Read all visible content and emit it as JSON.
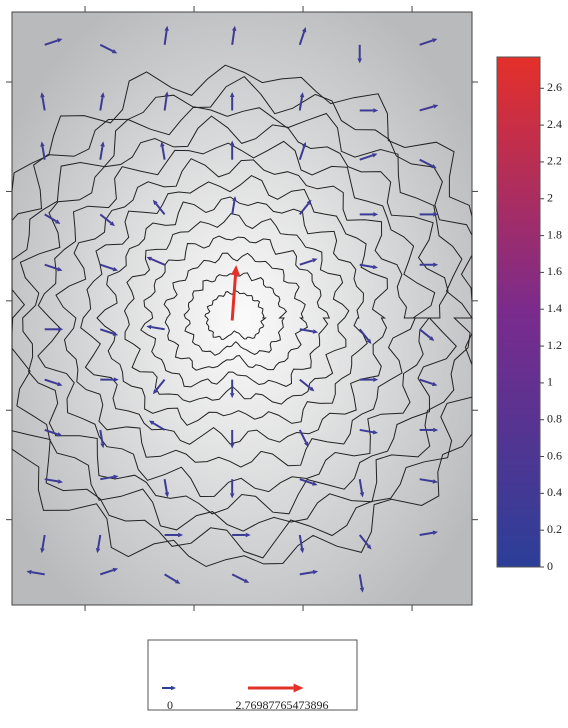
{
  "chart_data": {
    "type": "quiver",
    "xlim": [
      0.33,
      4.55
    ],
    "ylim": [
      0.22,
      5.64
    ],
    "xticks": [
      1,
      2,
      3,
      4
    ],
    "yticks": [
      1,
      2,
      3,
      4,
      5
    ],
    "x": [
      0.63,
      1.14,
      1.73,
      2.35,
      2.97,
      3.52,
      4.07,
      0.63,
      1.14,
      1.73,
      2.35,
      2.97,
      3.52,
      4.07,
      0.63,
      1.14,
      1.73,
      2.35,
      2.97,
      3.52,
      4.07,
      0.63,
      1.14,
      1.73,
      2.35,
      2.97,
      3.52,
      4.07,
      0.63,
      1.14,
      1.73,
      2.97,
      3.52,
      4.07,
      2.35,
      0.63,
      1.14,
      1.73,
      2.97,
      3.52,
      4.07,
      0.63,
      1.14,
      1.73,
      2.35,
      2.97,
      3.52,
      4.07,
      0.63,
      1.14,
      1.73,
      2.35,
      2.97,
      3.52,
      4.07,
      0.63,
      1.14,
      1.73,
      2.35,
      2.97,
      3.52,
      4.07,
      0.63,
      1.14,
      1.73,
      2.35,
      2.97,
      3.52,
      4.07,
      0.63,
      1.14,
      1.73,
      2.35,
      2.97,
      3.52
    ],
    "y": [
      5.34,
      5.34,
      5.34,
      5.34,
      5.34,
      5.34,
      5.34,
      4.74,
      4.74,
      4.74,
      4.74,
      4.74,
      4.74,
      4.74,
      4.29,
      4.29,
      4.29,
      4.29,
      4.29,
      4.29,
      4.29,
      3.79,
      3.79,
      3.79,
      3.79,
      3.79,
      3.79,
      3.79,
      3.33,
      3.33,
      3.33,
      3.33,
      3.33,
      3.33,
      2.82,
      2.74,
      2.74,
      2.74,
      2.74,
      2.74,
      2.74,
      2.28,
      2.28,
      2.28,
      2.28,
      2.28,
      2.28,
      2.28,
      1.82,
      1.82,
      1.82,
      1.82,
      1.82,
      1.82,
      1.82,
      1.37,
      1.37,
      1.37,
      1.37,
      1.37,
      1.37,
      1.37,
      0.86,
      0.86,
      0.86,
      0.86,
      0.86,
      0.86,
      0.86,
      0.5,
      0.5,
      0.5,
      0.5,
      0.5,
      0.5
    ],
    "u": [
      0.3,
      0.3,
      0.05,
      0.05,
      0.1,
      0,
      0.3,
      -0.05,
      0.05,
      0.05,
      0,
      0.05,
      0.3,
      0.35,
      -0.05,
      0.05,
      -0.05,
      0,
      0.1,
      0.3,
      0.3,
      0.25,
      0.25,
      -0.2,
      0.05,
      0.2,
      0.3,
      0.3,
      0.3,
      0.3,
      -0.35,
      0.3,
      0.3,
      0.3,
      0.2,
      0.3,
      0.3,
      -0.3,
      0.3,
      0.2,
      0.25,
      0.3,
      0.3,
      -0.2,
      0,
      0.25,
      0.3,
      0.3,
      0.3,
      0.05,
      -0.25,
      0,
      0.15,
      0.3,
      0.3,
      0.3,
      0.3,
      0.05,
      0,
      0.3,
      0.05,
      0.3,
      -0.05,
      -0.05,
      0.3,
      0.3,
      0.05,
      0.2,
      0.3,
      -0.3,
      0.3,
      0.25,
      0.3,
      0.3,
      0.05
    ],
    "v": [
      0.1,
      -0.15,
      0.35,
      0.35,
      0.3,
      -0.3,
      0.1,
      0.3,
      0.3,
      0.35,
      0.3,
      0.3,
      0,
      0.1,
      0.3,
      0.3,
      0.3,
      0.35,
      0.3,
      0.1,
      -0.15,
      -0.15,
      -0.2,
      0.25,
      0.3,
      0.25,
      0,
      0,
      -0.1,
      -0.1,
      0.15,
      0.1,
      -0.05,
      0,
      2.763,
      0,
      -0.1,
      0.05,
      -0.05,
      -0.25,
      -0.2,
      -0.1,
      0,
      -0.25,
      -0.3,
      -0.2,
      0,
      -0.1,
      -0.1,
      -0.3,
      0.15,
      -0.3,
      -0.3,
      -0.05,
      0,
      -0.05,
      0.05,
      -0.3,
      -0.35,
      -0.1,
      -0.3,
      -0.05,
      -0.3,
      -0.3,
      0,
      0,
      -0.3,
      -0.25,
      0.05,
      0.05,
      0.1,
      -0.15,
      -0.15,
      0.05,
      -0.3
    ],
    "colorbar": {
      "clim": [
        0,
        2.76987765473896
      ],
      "ticks": [
        0,
        0.2,
        0.4,
        0.6,
        0.8,
        1,
        1.2,
        1.4,
        1.6,
        1.8,
        2,
        2.2,
        2.4,
        2.6
      ],
      "colors": [
        "#2b3f98",
        "#7a2b8d",
        "#e5302a"
      ]
    },
    "legend": {
      "values": [
        0,
        2.76987765473896
      ]
    }
  }
}
